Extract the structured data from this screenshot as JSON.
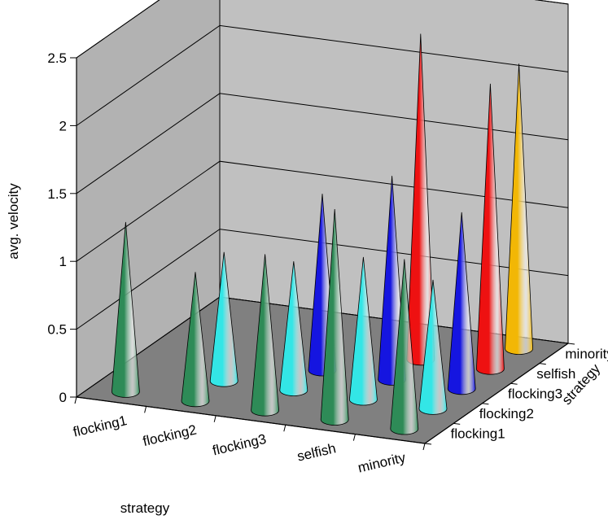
{
  "chart_data": {
    "type": "3d-cone-bar",
    "ylabel": "avg. velocity",
    "xlabel": "strategy",
    "zlabel": "strategy",
    "ylim": [
      0,
      2.5
    ],
    "yticks": [
      "0",
      "0.5",
      "1",
      "1.5",
      "2",
      "2.5"
    ],
    "x_categories": [
      "flocking1",
      "flocking2",
      "flocking3",
      "selfish",
      "minority"
    ],
    "z_categories": [
      "flocking1",
      "flocking2",
      "flocking3",
      "selfish",
      "minority"
    ],
    "grid": true,
    "colors": {
      "flocking1": "#2e8b57",
      "flocking2": "#33e6e6",
      "flocking3": "#1515e0",
      "selfish": "#ee1111",
      "minority": "#f2b705"
    },
    "cones": [
      {
        "x": "flocking1",
        "z": "flocking1",
        "value": 1.25
      },
      {
        "x": "flocking2",
        "z": "flocking1",
        "value": 0.95
      },
      {
        "x": "flocking3",
        "z": "flocking1",
        "value": 1.15
      },
      {
        "x": "selfish",
        "z": "flocking1",
        "value": 1.55
      },
      {
        "x": "minority",
        "z": "flocking1",
        "value": 1.25
      },
      {
        "x": "flocking2",
        "z": "flocking2",
        "value": 0.95
      },
      {
        "x": "flocking3",
        "z": "flocking2",
        "value": 0.95
      },
      {
        "x": "selfish",
        "z": "flocking2",
        "value": 1.05
      },
      {
        "x": "minority",
        "z": "flocking2",
        "value": 0.95
      },
      {
        "x": "flocking3",
        "z": "flocking3",
        "value": 1.3
      },
      {
        "x": "selfish",
        "z": "flocking3",
        "value": 1.5
      },
      {
        "x": "minority",
        "z": "flocking3",
        "value": 1.3
      },
      {
        "x": "selfish",
        "z": "selfish",
        "value": 2.4
      },
      {
        "x": "minority",
        "z": "selfish",
        "value": 2.1
      },
      {
        "x": "minority",
        "z": "minority",
        "value": 2.1
      }
    ]
  }
}
